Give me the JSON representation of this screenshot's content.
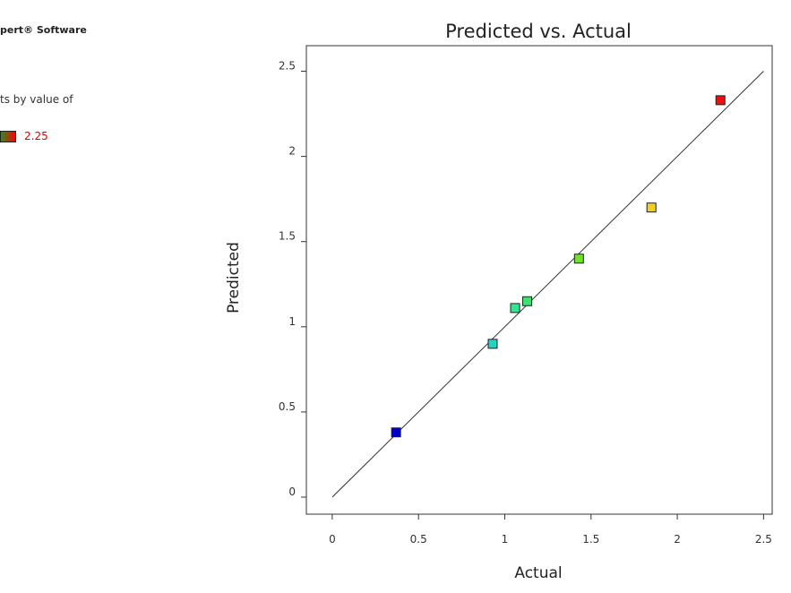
{
  "sidebar": {
    "brand": "pert® Software",
    "color_note": "ts by value of",
    "legend": {
      "max_label": "2.25",
      "gradient_start": "#2e8b1e",
      "gradient_end": "#ff0000",
      "max_color": "#e00000"
    }
  },
  "chart_data": {
    "type": "scatter",
    "title": "Predicted vs. Actual",
    "xlabel": "Actual",
    "ylabel": "Predicted",
    "xlim": [
      -0.15,
      2.55
    ],
    "ylim": [
      -0.1,
      2.65
    ],
    "x_ticks": [
      0,
      0.5,
      1,
      1.5,
      2,
      2.5
    ],
    "x_tick_labels": [
      "0",
      "0.5",
      "1",
      "1.5",
      "2",
      "2.5"
    ],
    "y_ticks": [
      0,
      0.5,
      1,
      1.5,
      2,
      2.5
    ],
    "y_tick_labels": [
      "0",
      "0.5",
      "1",
      "1.5",
      "2",
      "2.5"
    ],
    "reference_line": {
      "from": [
        0,
        0
      ],
      "to": [
        2.5,
        2.5
      ]
    },
    "points": [
      {
        "x": 0.37,
        "y": 0.38,
        "color": "#0000cc"
      },
      {
        "x": 0.93,
        "y": 0.9,
        "color": "#20d4c0"
      },
      {
        "x": 1.06,
        "y": 1.11,
        "color": "#30e890"
      },
      {
        "x": 1.13,
        "y": 1.15,
        "color": "#40e070"
      },
      {
        "x": 1.43,
        "y": 1.4,
        "color": "#70e030"
      },
      {
        "x": 1.85,
        "y": 1.7,
        "color": "#f0d020"
      },
      {
        "x": 2.25,
        "y": 2.33,
        "color": "#e81010"
      }
    ],
    "grid": false,
    "marker": "square"
  }
}
